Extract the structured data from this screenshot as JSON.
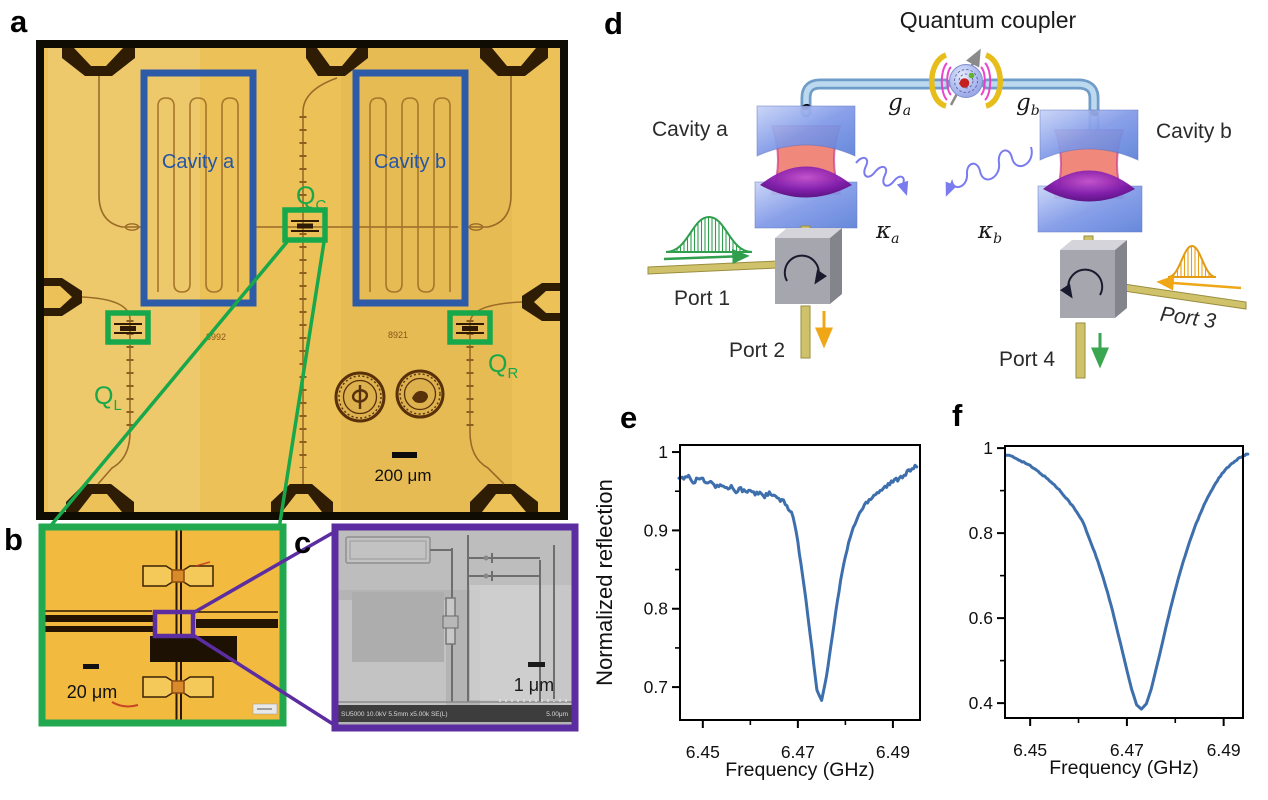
{
  "figure": {
    "background": "#ffffff",
    "panel_labels": {
      "a": "a",
      "b": "b",
      "c": "c",
      "d": "d",
      "e": "e",
      "f": "f"
    }
  },
  "panel_a": {
    "description": "optical micrograph of superconducting chip",
    "cavity_labels": [
      "Cavity a",
      "Cavity b"
    ],
    "qubit_labels": [
      {
        "base": "Q",
        "sub": "C"
      },
      {
        "base": "Q",
        "sub": "L"
      },
      {
        "base": "Q",
        "sub": "R"
      }
    ],
    "chip_ids": [
      "8992",
      "8921"
    ],
    "scale_bar_label": "200 μm",
    "colors": {
      "chip": "#ecc158",
      "frame": "#0f0c03",
      "cavity_box_blue": "#2d5ba8",
      "qubit_box_green": "#17a84b",
      "label_blue": "#2456a8"
    }
  },
  "panel_b": {
    "description": "zoomed optical micrograph of coupler qubit",
    "scale_bar_label": "20 μm",
    "border_color": "#22a84e",
    "zoom_box_color": "#5b2da0"
  },
  "panel_c": {
    "description": "SEM image of Josephson junctions",
    "scale_bar_label": "1 μm",
    "sem_info": "SU5000 10.0kV 5.5mm x5.00k SE(L)",
    "sem_scale_label": "5.00μm",
    "border_color": "#5b2da0"
  },
  "panel_d": {
    "title": "Quantum coupler",
    "cavity_labels": [
      "Cavity a",
      "Cavity b"
    ],
    "coupling_labels": [
      {
        "base": "g",
        "sub": "a"
      },
      {
        "base": "g",
        "sub": "b"
      }
    ],
    "decay_labels": [
      {
        "base": "κ",
        "sub": "a"
      },
      {
        "base": "κ",
        "sub": "b"
      }
    ],
    "port_labels": [
      "Port 1",
      "Port 2",
      "Port 3",
      "Port 4"
    ]
  },
  "chart_data": [
    {
      "panel": "e",
      "type": "line",
      "title": "",
      "xlabel": "Frequency (GHz)",
      "ylabel": "Normalized reflection",
      "line_color": "#3d6fad",
      "xlim": [
        6.4452,
        6.4957
      ],
      "ylim": [
        0.658,
        1.009
      ],
      "xticks": [
        6.45,
        6.47,
        6.49
      ],
      "xtick_labels": [
        "6.45",
        "6.47",
        "6.49"
      ],
      "xminor": [
        6.46,
        6.48
      ],
      "yticks": [
        1,
        0.9,
        0.8,
        0.7
      ],
      "ytick_labels": [
        "1",
        "0.9",
        "0.8",
        "0.7"
      ],
      "yminor": [
        0.95,
        0.85,
        0.75
      ],
      "grid": false,
      "noise": 0.007,
      "dip_center_ghz": 6.4745,
      "dip_min": 0.683,
      "x": [
        6.445,
        6.446,
        6.447,
        6.448,
        6.449,
        6.45,
        6.451,
        6.452,
        6.453,
        6.454,
        6.455,
        6.456,
        6.457,
        6.458,
        6.459,
        6.46,
        6.461,
        6.462,
        6.463,
        6.464,
        6.465,
        6.466,
        6.467,
        6.468,
        6.469,
        6.47,
        6.471,
        6.472,
        6.473,
        6.474,
        6.475,
        6.476,
        6.477,
        6.478,
        6.479,
        6.48,
        6.481,
        6.482,
        6.483,
        6.484,
        6.485,
        6.486,
        6.487,
        6.488,
        6.489,
        6.49,
        6.491,
        6.492,
        6.493,
        6.494,
        6.495
      ],
      "y": [
        0.97,
        0.964,
        0.97,
        0.962,
        0.967,
        0.964,
        0.959,
        0.962,
        0.955,
        0.959,
        0.953,
        0.956,
        0.951,
        0.954,
        0.948,
        0.951,
        0.946,
        0.949,
        0.944,
        0.947,
        0.943,
        0.94,
        0.936,
        0.929,
        0.919,
        0.884,
        0.842,
        0.796,
        0.747,
        0.696,
        0.683,
        0.713,
        0.755,
        0.797,
        0.836,
        0.867,
        0.891,
        0.909,
        0.922,
        0.932,
        0.94,
        0.945,
        0.95,
        0.954,
        0.958,
        0.962,
        0.966,
        0.97,
        0.974,
        0.978,
        0.981
      ]
    },
    {
      "panel": "f",
      "type": "line",
      "title": "",
      "xlabel": "Frequency (GHz)",
      "ylabel": "",
      "line_color": "#3d6fad",
      "xlim": [
        6.4448,
        6.494
      ],
      "ylim": [
        0.365,
        1.005
      ],
      "xticks": [
        6.45,
        6.47,
        6.49
      ],
      "xtick_labels": [
        "6.45",
        "6.47",
        "6.49"
      ],
      "xminor": [
        6.46,
        6.48
      ],
      "yticks": [
        1,
        0.8,
        0.6,
        0.4
      ],
      "ytick_labels": [
        "1",
        "0.8",
        "0.6",
        "0.4"
      ],
      "yminor": [
        0.9,
        0.7,
        0.5
      ],
      "grid": false,
      "noise": 0.0035,
      "dip_center_ghz": 6.473,
      "dip_min": 0.386,
      "x": [
        6.445,
        6.446,
        6.447,
        6.448,
        6.449,
        6.45,
        6.451,
        6.452,
        6.453,
        6.454,
        6.455,
        6.456,
        6.457,
        6.458,
        6.459,
        6.46,
        6.461,
        6.462,
        6.463,
        6.464,
        6.465,
        6.466,
        6.467,
        6.468,
        6.469,
        6.47,
        6.471,
        6.472,
        6.473,
        6.474,
        6.475,
        6.476,
        6.477,
        6.478,
        6.479,
        6.48,
        6.481,
        6.482,
        6.483,
        6.484,
        6.485,
        6.486,
        6.487,
        6.488,
        6.489,
        6.49,
        6.491,
        6.492,
        6.493,
        6.494,
        6.495
      ],
      "y": [
        0.985,
        0.981,
        0.976,
        0.971,
        0.965,
        0.958,
        0.95,
        0.942,
        0.933,
        0.924,
        0.913,
        0.902,
        0.889,
        0.875,
        0.86,
        0.843,
        0.824,
        0.794,
        0.765,
        0.733,
        0.698,
        0.66,
        0.618,
        0.572,
        0.525,
        0.477,
        0.432,
        0.396,
        0.386,
        0.398,
        0.432,
        0.478,
        0.526,
        0.575,
        0.622,
        0.667,
        0.708,
        0.746,
        0.781,
        0.813,
        0.842,
        0.868,
        0.891,
        0.911,
        0.929,
        0.944,
        0.957,
        0.967,
        0.975,
        0.981,
        0.986
      ]
    }
  ]
}
